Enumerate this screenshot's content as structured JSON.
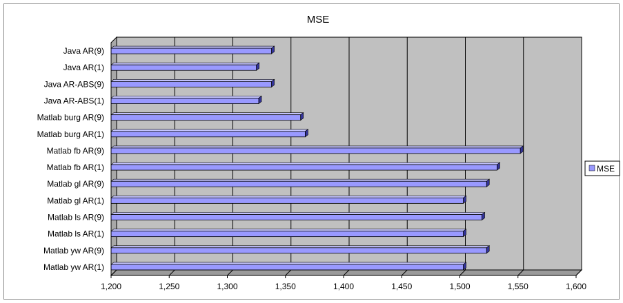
{
  "chart_data": {
    "type": "bar",
    "orientation": "horizontal",
    "title": "MSE",
    "xlabel": "",
    "ylabel": "",
    "categories": [
      "Java AR(9)",
      "Java AR(1)",
      "Java AR-ABS(9)",
      "Java AR-ABS(1)",
      "Matlab burg AR(9)",
      "Matlab burg AR(1)",
      "Matlab fb AR(9)",
      "Matlab fb AR(1)",
      "Matlab gl AR(9)",
      "Matlab gl AR(1)",
      "Matlab ls AR(9)",
      "Matlab ls AR(1)",
      "Matlab yw AR(9)",
      "Matlab yw AR(1)"
    ],
    "series": [
      {
        "name": "MSE",
        "values": [
          1338,
          1325,
          1338,
          1327,
          1363,
          1367,
          1552,
          1532,
          1523,
          1503,
          1519,
          1503,
          1523,
          1503
        ]
      }
    ],
    "xlim": [
      1200,
      1600
    ],
    "xticks": [
      "1,200",
      "1,250",
      "1,300",
      "1,350",
      "1,400",
      "1,450",
      "1,500",
      "1,550",
      "1,600"
    ],
    "grid": true,
    "legend_position": "right",
    "colors": {
      "bar_face": "#9999ff",
      "bar_top": "#c4c4ff",
      "bar_side": "#333399",
      "plot_back_wall": "#c0c0c0",
      "plot_floor": "#9a9a9a",
      "gridline": "#000000"
    }
  }
}
